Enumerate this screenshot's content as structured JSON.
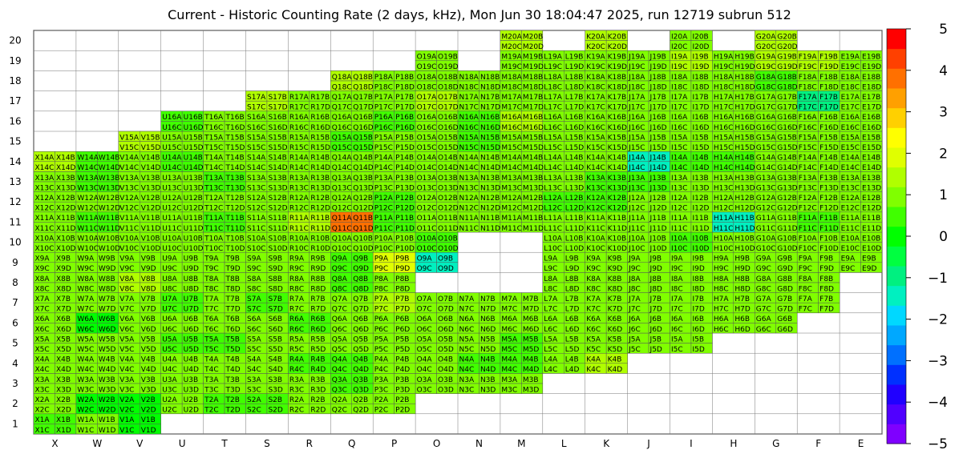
{
  "chart_data": {
    "type": "heatmap",
    "title": "Current - Historic Counting Rate (2 days, kHz), Mon Jun 30 18:04:47 2025, run 12719 subrun 512",
    "columns": [
      "X",
      "W",
      "V",
      "U",
      "T",
      "S",
      "R",
      "Q",
      "P",
      "O",
      "N",
      "M",
      "L",
      "K",
      "J",
      "I",
      "H",
      "G",
      "F",
      "E"
    ],
    "rows": [
      1,
      2,
      3,
      4,
      5,
      6,
      7,
      8,
      9,
      10,
      11,
      12,
      13,
      14,
      15,
      16,
      17,
      18,
      19,
      20
    ],
    "zlim": [
      -5,
      5
    ],
    "scale_ticks": [
      -5,
      -4,
      -3,
      -2,
      -1,
      0,
      1,
      2,
      3,
      4,
      5
    ],
    "scale_colors": [
      "#7f00ff",
      "#5000ff",
      "#2000ff",
      "#0030ff",
      "#0070ff",
      "#00a8ff",
      "#00d8ff",
      "#00f0c0",
      "#00f080",
      "#00ff40",
      "#00ff00",
      "#40ff00",
      "#80ff00",
      "#b0ff00",
      "#e0ff00",
      "#ffff00",
      "#ffd000",
      "#ffa000",
      "#ff7000",
      "#ff4000",
      "#ff0000"
    ],
    "row_ranges": {
      "1": [
        "X",
        "V"
      ],
      "2": [
        "X",
        "P"
      ],
      "3": [
        "X",
        "M"
      ],
      "4": [
        "X",
        "K"
      ],
      "5": [
        "X",
        "I"
      ],
      "6": [
        "X",
        "G"
      ],
      "7": [
        "X",
        "F"
      ],
      "8": [
        "X",
        "F"
      ],
      "9": [
        "X",
        "E"
      ],
      "10": [
        "X",
        "E"
      ],
      "11": [
        "X",
        "E"
      ],
      "12": [
        "X",
        "E"
      ],
      "13": [
        "X",
        "E"
      ],
      "14": [
        "X",
        "E"
      ],
      "15": [
        "V",
        "E"
      ],
      "16": [
        "U",
        "E"
      ],
      "17": [
        "S",
        "E"
      ],
      "18": [
        "Q",
        "E"
      ],
      "19": [
        "O",
        "E"
      ],
      "20": [
        "M",
        "G"
      ]
    },
    "row_gaps": {
      "8": [
        "O",
        "N",
        "M"
      ],
      "9": [
        "N",
        "M"
      ],
      "10": [
        "N",
        "M"
      ],
      "19": [
        "N"
      ],
      "20": [
        "L",
        "J",
        "H"
      ]
    },
    "chamber_values": {
      "X1": 0.3,
      "V1": 0.2,
      "W2": 0.1,
      "V2": 0.2,
      "T2": 0.5,
      "S2": 0.6,
      "Q3": 0.6,
      "Q4": 0.6,
      "R4": 0.6,
      "N4": 0.4,
      "K4": 1.6,
      "M4": 0.4,
      "U5": 0.7,
      "T5": 0.7,
      "M5": 0.7,
      "W6": 0.2,
      "R6": 0.5,
      "T6": 1.0,
      "Q6": 1.0,
      "O6": 1.0,
      "G6": 1.1,
      "W7": 1.1,
      "U7": 0.7,
      "S7": 0.7,
      "P7": 1.2,
      "G7": 1.0,
      "V8": 1.2,
      "Q8": 0.3,
      "Q9": 0.4,
      "P9": 1.8,
      "O9": -1.4,
      "K9": 1.1,
      "H9": 1.1,
      "O10": 0.5,
      "I10": 0.6,
      "W11": 0.4,
      "T11": 0.4,
      "R11": 1.2,
      "Q11": 3.9,
      "P11": 0.5,
      "K11": 0.9,
      "H11": -1.2,
      "F11": 0.5,
      "U12": 1.1,
      "P12": 0.4,
      "L12": 0.5,
      "K12": 0.5,
      "W13": 0.4,
      "T13": 0.6,
      "M13": 1.1,
      "K13": 0.7,
      "J13": 0.6,
      "X14": 1.3,
      "W14": 0.4,
      "U14": 0.4,
      "J14": -1.2,
      "I14": 0.6,
      "H14": 0.4,
      "V15": 1.6,
      "Q15": 0.6,
      "N15": 0.5,
      "U16": 0.5,
      "P16": 0.4,
      "N16": 0.6,
      "M16": 1.2,
      "S17": 1.5,
      "O17": 1.3,
      "F17": -1.0,
      "Q18": 1.3,
      "G18": 0.6,
      "I19": 1.5,
      "G19": 1.3,
      "F19": 1.5,
      "M20": 1.4,
      "K20": 1.4,
      "G20": 1.4
    },
    "default_value": 0.8
  }
}
